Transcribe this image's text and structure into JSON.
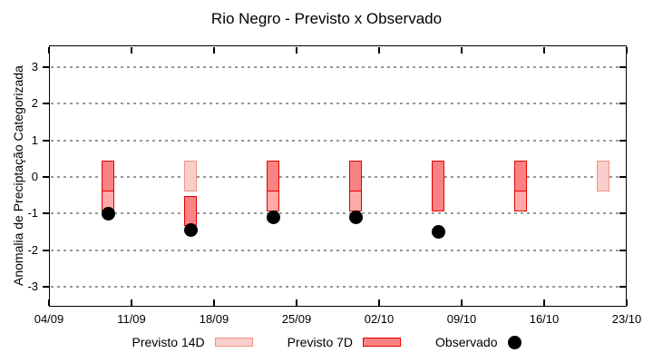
{
  "title": "Rio Negro - Previsto x Observado",
  "y_axis": {
    "label": "Anomalia de Preciptação Categorizada",
    "ticks": [
      3,
      2,
      1,
      0,
      -1,
      -2,
      -3
    ],
    "min": -3.55,
    "max": 3.6
  },
  "x_axis": {
    "tick_labels": [
      "04/09",
      "11/09",
      "18/09",
      "25/09",
      "02/10",
      "09/10",
      "16/10",
      "23/10"
    ],
    "tick_days": [
      0,
      7,
      14,
      21,
      28,
      35,
      42,
      49
    ],
    "span_days": 49
  },
  "legend": {
    "items": [
      {
        "label": "Previsto 14D",
        "style": "previsto_14d"
      },
      {
        "label": "Previsto 7D",
        "style": "previsto_7d"
      },
      {
        "label": "Observado",
        "style": "observado"
      }
    ]
  },
  "styles": {
    "previsto_14d": {
      "fill": "#f9cdc9",
      "border": "#f0918a"
    },
    "previsto_7d": {
      "fill": "#fa8282",
      "border": "#e60000"
    },
    "overlap": {
      "fill": "#ffaaa8",
      "border": "#e60000"
    },
    "observado": {
      "fill": "#000000"
    },
    "gridline": "#989898"
  },
  "chart_data": {
    "type": "bar",
    "title": "Rio Negro - Previsto x Observado",
    "xlabel": "",
    "ylabel": "Anomalia de Preciptação Categorizada",
    "ylim": [
      -3.55,
      3.6
    ],
    "x_tick_labels": [
      "04/09",
      "11/09",
      "18/09",
      "25/09",
      "02/10",
      "09/10",
      "16/10",
      "23/10"
    ],
    "legend_position": "bottom-center",
    "grid": "horizontal-dotted",
    "bar_width_days": 1.1,
    "bars": [
      {
        "date": "09/09",
        "day": 5,
        "segments": [
          {
            "series": "previsto_7d",
            "from": 0.45,
            "to": -0.4
          },
          {
            "series": "overlap",
            "from": -0.4,
            "to": -0.95
          }
        ]
      },
      {
        "date": "16/09",
        "day": 12,
        "segments": [
          {
            "series": "previsto_14d",
            "from": 0.45,
            "to": -0.4
          },
          {
            "series": "previsto_7d",
            "from": -0.52,
            "to": -1.33
          }
        ]
      },
      {
        "date": "23/09",
        "day": 19,
        "segments": [
          {
            "series": "previsto_7d",
            "from": 0.45,
            "to": -0.4
          },
          {
            "series": "overlap",
            "from": -0.4,
            "to": -0.95
          }
        ]
      },
      {
        "date": "30/09",
        "day": 26,
        "segments": [
          {
            "series": "previsto_7d",
            "from": 0.45,
            "to": -0.4
          },
          {
            "series": "overlap",
            "from": -0.4,
            "to": -0.95
          }
        ]
      },
      {
        "date": "07/10",
        "day": 33,
        "segments": [
          {
            "series": "previsto_7d",
            "from": 0.45,
            "to": -0.95
          }
        ]
      },
      {
        "date": "14/10",
        "day": 40,
        "segments": [
          {
            "series": "previsto_7d",
            "from": 0.45,
            "to": -0.4
          },
          {
            "series": "overlap",
            "from": -0.4,
            "to": -0.95
          }
        ]
      },
      {
        "date": "21/10",
        "day": 47,
        "segments": [
          {
            "series": "previsto_14d",
            "from": 0.45,
            "to": -0.4
          }
        ]
      }
    ],
    "observed": [
      {
        "date": "09/09",
        "day": 5,
        "value": -1.0
      },
      {
        "date": "16/09",
        "day": 12,
        "value": -1.45
      },
      {
        "date": "23/09",
        "day": 19,
        "value": -1.1
      },
      {
        "date": "30/09",
        "day": 26,
        "value": -1.1
      },
      {
        "date": "07/10",
        "day": 33,
        "value": -1.5
      }
    ]
  }
}
